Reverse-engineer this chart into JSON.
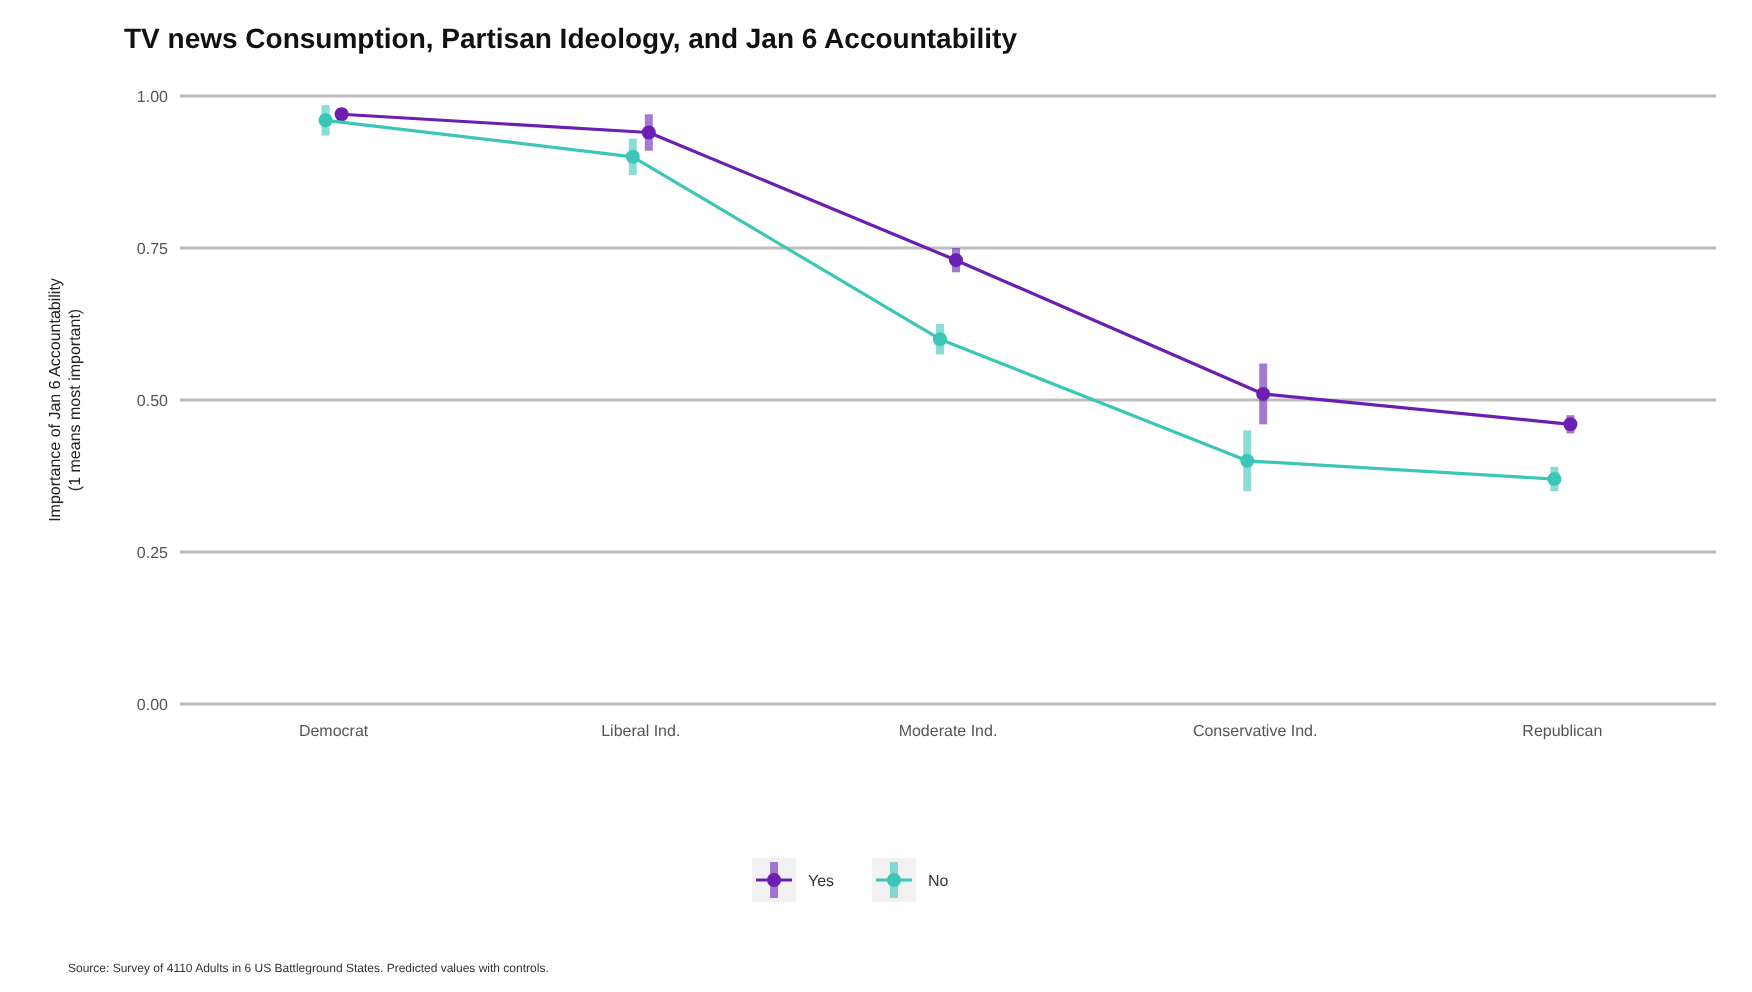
{
  "chart_data": {
    "type": "line",
    "title": "TV news Consumption, Partisan Ideology, and Jan 6 Accountability",
    "ylabel": "Importance of Jan 6 Accountability\n(1 means most important)",
    "categories": [
      "Democrat",
      "Liberal Ind.",
      "Moderate Ind.",
      "Conservative Ind.",
      "Republican"
    ],
    "series": [
      {
        "name": "Yes",
        "color": "#6a1fb0",
        "values": [
          0.97,
          0.94,
          0.73,
          0.51,
          0.46
        ],
        "errors": [
          0.01,
          0.03,
          0.02,
          0.05,
          0.015
        ]
      },
      {
        "name": "No",
        "color": "#3cc6b8",
        "values": [
          0.96,
          0.9,
          0.6,
          0.4,
          0.37
        ],
        "errors": [
          0.025,
          0.03,
          0.025,
          0.05,
          0.02
        ]
      }
    ],
    "ylim": [
      0,
      1
    ],
    "yticks": [
      {
        "value": 0,
        "label": "0.00"
      },
      {
        "value": 0.25,
        "label": "0.25"
      },
      {
        "value": 0.5,
        "label": "0.50"
      },
      {
        "value": 0.75,
        "label": "0.75"
      },
      {
        "value": 1,
        "label": "1.00"
      }
    ],
    "grid": "y",
    "legend": "bottom",
    "marker": "circle",
    "line_style": "solid",
    "annotations": [
      "Source: Survey of 4110 Adults in 6 US Battleground States. Predicted values with controls."
    ]
  }
}
